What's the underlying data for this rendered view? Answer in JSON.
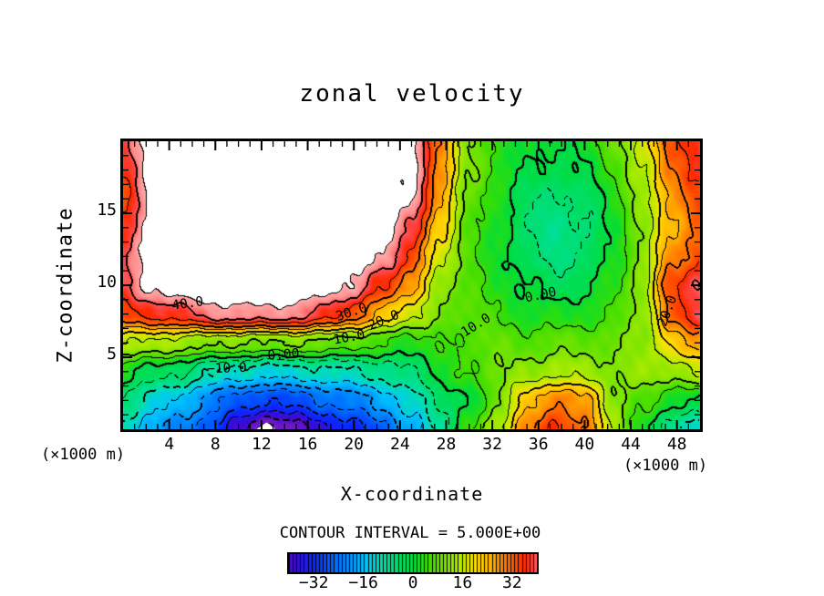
{
  "title": "zonal velocity",
  "contour_interval_label": "CONTOUR INTERVAL = 5.000E+00",
  "colorbar": {
    "tick_labels": [
      "−32",
      "−16",
      "0",
      "16",
      "32"
    ],
    "tick_values": [
      -32,
      -16,
      0,
      16,
      32
    ],
    "range": [
      -40,
      40
    ],
    "cells": 66
  },
  "chart_data": {
    "type": "heatmap",
    "subtype": "filled-contour",
    "title": "zonal velocity",
    "contour_interval": 5,
    "x_axis": {
      "label": "X-coordinate",
      "unit": "(×1000 m)",
      "range": [
        0,
        50
      ],
      "major_ticks": [
        4,
        8,
        12,
        16,
        20,
        24,
        28,
        32,
        36,
        40,
        44,
        48
      ],
      "minor_step": 1
    },
    "z_axis": {
      "label": "Z-coordinate",
      "unit": "(×1000 m)",
      "range": [
        0,
        20
      ],
      "major_ticks": [
        5,
        10,
        15
      ],
      "minor_step": 1
    },
    "x_points": [
      0,
      2.5,
      5,
      7.5,
      10,
      12.5,
      15,
      17.5,
      20,
      22.5,
      25,
      27.5,
      30,
      32.5,
      35,
      37.5,
      40,
      42.5,
      45,
      47.5,
      50
    ],
    "z_points": [
      0,
      2,
      4,
      6,
      8,
      10,
      12,
      14,
      16,
      18,
      20
    ],
    "values": [
      [
        -12,
        -18,
        -22,
        -28,
        -38,
        -47,
        -42,
        -36,
        -32,
        -26,
        -18,
        -8,
        4,
        15,
        28,
        36,
        30,
        14,
        2,
        -9,
        -12
      ],
      [
        -6,
        -12,
        -16,
        -22,
        -27,
        -30,
        -28,
        -25,
        -22,
        -18,
        -12,
        -4,
        -1,
        10,
        22,
        30,
        26,
        12,
        6,
        2,
        0
      ],
      [
        2,
        -2,
        -5,
        -9,
        -12,
        -13,
        -12,
        -11,
        -10,
        -8,
        -5,
        1,
        6,
        9,
        12,
        14,
        13,
        11,
        12,
        13,
        15
      ],
      [
        16,
        14,
        13,
        11,
        10,
        10,
        10,
        9,
        7,
        5,
        3,
        4,
        7,
        8,
        7,
        8,
        8,
        9,
        11,
        22,
        26
      ],
      [
        34,
        36,
        38,
        42,
        43,
        43,
        42,
        38,
        32,
        24,
        16,
        10,
        7,
        5,
        2,
        2,
        3,
        5,
        12,
        31,
        39
      ],
      [
        39,
        46,
        50,
        52,
        53,
        54,
        52,
        48,
        44,
        36,
        26,
        13,
        6,
        3,
        0,
        -3,
        -1,
        3,
        13,
        33,
        41
      ],
      [
        38,
        48,
        54,
        57,
        58,
        59,
        57,
        54,
        50,
        44,
        34,
        17,
        6,
        2,
        -4,
        -6,
        -5,
        2,
        11,
        28,
        34
      ],
      [
        36,
        48,
        55,
        58,
        60,
        61,
        59,
        56,
        52,
        48,
        40,
        21,
        7,
        2,
        -5,
        -7,
        -6,
        2,
        10,
        25,
        31
      ],
      [
        33,
        47,
        55,
        58,
        60,
        61,
        59,
        56,
        53,
        49,
        46,
        25,
        9,
        2,
        -3,
        -6,
        -4,
        3,
        12,
        27,
        33
      ],
      [
        37,
        47,
        54,
        58,
        60,
        61,
        58,
        55,
        52,
        49,
        46,
        28,
        11,
        3,
        0,
        -2,
        0,
        5,
        15,
        30,
        36
      ],
      [
        39,
        47,
        53,
        57,
        59,
        60,
        58,
        55,
        52,
        48,
        46,
        30,
        9,
        4,
        1,
        0,
        2,
        8,
        18,
        32,
        38
      ]
    ],
    "colored_value_range": [
      -45,
      45
    ],
    "off_scale_color": "#FFFFFF",
    "colormap": [
      [
        -47,
        "#8C28C8"
      ],
      [
        -42,
        "#6414C8"
      ],
      [
        -38,
        "#3C0AD2"
      ],
      [
        -32,
        "#0A28FF"
      ],
      [
        -26,
        "#0064FF"
      ],
      [
        -20,
        "#0096FF"
      ],
      [
        -15,
        "#00C8FA"
      ],
      [
        -10,
        "#00E0A8"
      ],
      [
        -5,
        "#00DE6E"
      ],
      [
        0,
        "#00DC3C"
      ],
      [
        5,
        "#3CDE00"
      ],
      [
        10,
        "#78E400"
      ],
      [
        15,
        "#B4EC00"
      ],
      [
        20,
        "#FFE000"
      ],
      [
        25,
        "#FFB400"
      ],
      [
        28,
        "#FF8C00"
      ],
      [
        32,
        "#FF5A00"
      ],
      [
        36,
        "#FF2800"
      ],
      [
        39,
        "#FF4646"
      ],
      [
        42,
        "#FF8C8C"
      ],
      [
        45,
        "#FFAAAA"
      ]
    ],
    "contour_labels": [
      {
        "text": "40.0",
        "x": 5.6,
        "z": 8.7,
        "rot": -8
      },
      {
        "text": "30.0",
        "x": 19.8,
        "z": 8.1,
        "rot": -18
      },
      {
        "text": "20.0",
        "x": 22.6,
        "z": 7.55,
        "rot": -22
      },
      {
        "text": "10.0",
        "x": 19.6,
        "z": 6.35,
        "rot": -10
      },
      {
        "text": "0.00",
        "x": 13.9,
        "z": 5.15,
        "rot": -4
      },
      {
        "text": "−10.0",
        "x": 9.0,
        "z": 4.2,
        "rot": -2
      },
      {
        "text": "10.0",
        "x": 30.6,
        "z": 7.2,
        "rot": -32
      },
      {
        "text": "0.00",
        "x": 36.2,
        "z": 9.3,
        "rot": -12
      },
      {
        "text": "20.0",
        "x": 47.2,
        "z": 8.2,
        "rot": -70
      }
    ]
  }
}
